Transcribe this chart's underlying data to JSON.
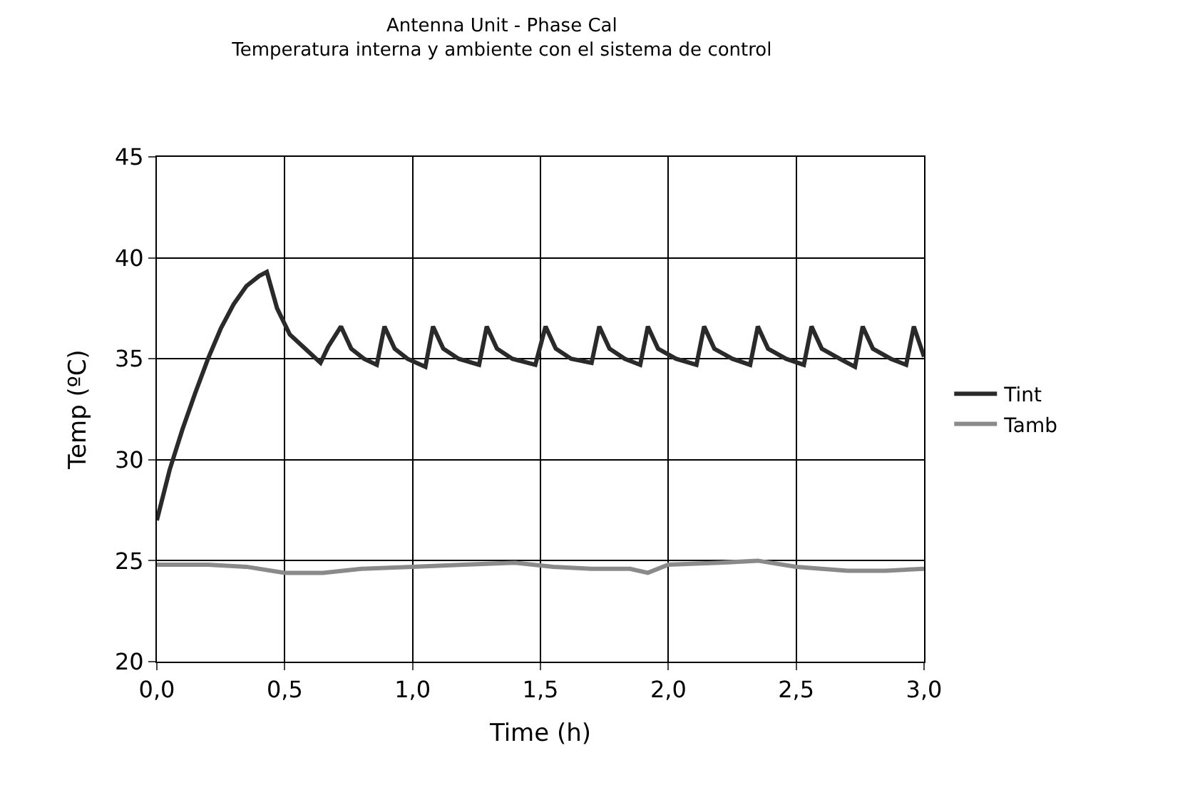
{
  "chart_data": {
    "type": "line",
    "title": "Antenna Unit - Phase Cal",
    "subtitle": "Temperatura interna y ambiente con el sistema de control",
    "xlabel": "Time (h)",
    "ylabel": "Temp (ºC)",
    "xlim": [
      0,
      3
    ],
    "xticks": [
      {
        "value": 0,
        "label": "0,0"
      },
      {
        "value": 0.5,
        "label": "0,5"
      },
      {
        "value": 1,
        "label": "1,0"
      },
      {
        "value": 1.5,
        "label": "1,5"
      },
      {
        "value": 2,
        "label": "2,0"
      },
      {
        "value": 2.5,
        "label": "2,5"
      },
      {
        "value": 3,
        "label": "3,0"
      }
    ],
    "ylim": [
      20,
      45
    ],
    "yticks": [
      20,
      25,
      30,
      35,
      40,
      45
    ],
    "grid": true,
    "legend": "right",
    "marker": "none",
    "line_style": "solid",
    "series": [
      {
        "name": "Tint",
        "color": "#2a2a2a",
        "x": [
          0,
          0.05,
          0.1,
          0.15,
          0.2,
          0.25,
          0.3,
          0.35,
          0.4,
          0.43,
          0.47,
          0.52,
          0.58,
          0.64,
          0.67,
          0.72,
          0.76,
          0.81,
          0.86,
          0.89,
          0.93,
          0.98,
          1.05,
          1.08,
          1.12,
          1.18,
          1.26,
          1.29,
          1.33,
          1.39,
          1.48,
          1.52,
          1.56,
          1.62,
          1.7,
          1.73,
          1.77,
          1.83,
          1.89,
          1.92,
          1.96,
          2.03,
          2.11,
          2.14,
          2.18,
          2.25,
          2.32,
          2.35,
          2.39,
          2.46,
          2.53,
          2.56,
          2.6,
          2.67,
          2.73,
          2.76,
          2.8,
          2.87,
          2.93,
          2.96,
          3.0
        ],
        "values": [
          27,
          29.5,
          31.5,
          33.3,
          35,
          36.5,
          37.7,
          38.6,
          39.1,
          39.3,
          37.5,
          36.2,
          35.5,
          34.8,
          35.6,
          36.6,
          35.5,
          35.0,
          34.7,
          36.6,
          35.5,
          35.0,
          34.6,
          36.6,
          35.5,
          35.0,
          34.7,
          36.6,
          35.5,
          35.0,
          34.7,
          36.6,
          35.5,
          35.0,
          34.8,
          36.6,
          35.5,
          35.0,
          34.7,
          36.6,
          35.5,
          35.0,
          34.7,
          36.6,
          35.5,
          35.0,
          34.7,
          36.6,
          35.5,
          35.0,
          34.7,
          36.6,
          35.5,
          35.0,
          34.6,
          36.6,
          35.5,
          35.0,
          34.7,
          36.6,
          35.1
        ]
      },
      {
        "name": "Tamb",
        "color": "#8a8a8a",
        "x": [
          0,
          0.2,
          0.35,
          0.5,
          0.65,
          0.8,
          1.0,
          1.2,
          1.4,
          1.55,
          1.7,
          1.85,
          1.92,
          2.0,
          2.2,
          2.35,
          2.5,
          2.7,
          2.85,
          3.0
        ],
        "values": [
          24.8,
          24.8,
          24.7,
          24.4,
          24.4,
          24.6,
          24.7,
          24.8,
          24.9,
          24.7,
          24.6,
          24.6,
          24.4,
          24.8,
          24.9,
          25.0,
          24.7,
          24.5,
          24.5,
          24.6
        ]
      }
    ]
  }
}
